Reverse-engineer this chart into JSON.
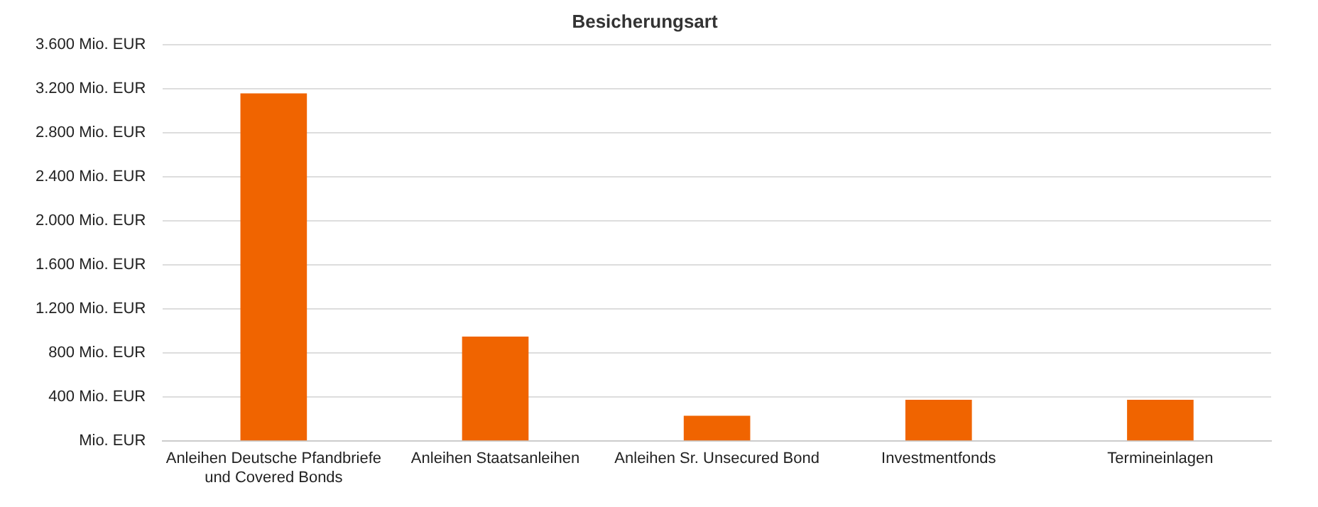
{
  "chart_data": {
    "type": "bar",
    "title": "Besicherungsart",
    "categories": [
      "Anleihen Deutsche Pfandbriefe und Covered Bonds",
      "Anleihen Staatsanleihen",
      "Anleihen Sr. Unsecured Bond",
      "Investmentfonds",
      "Termineinlagen"
    ],
    "values": [
      3160,
      950,
      230,
      375,
      375
    ],
    "color": "#f06400",
    "ylim": [
      0,
      3600
    ],
    "yticks": [
      {
        "value": 0,
        "label": "Mio. EUR"
      },
      {
        "value": 400,
        "label": "400 Mio. EUR"
      },
      {
        "value": 800,
        "label": "800 Mio. EUR"
      },
      {
        "value": 1200,
        "label": "1.200 Mio. EUR"
      },
      {
        "value": 1600,
        "label": "1.600 Mio. EUR"
      },
      {
        "value": 2000,
        "label": "2.000 Mio. EUR"
      },
      {
        "value": 2400,
        "label": "2.400 Mio. EUR"
      },
      {
        "value": 2800,
        "label": "2.800 Mio. EUR"
      },
      {
        "value": 3200,
        "label": "3.200 Mio. EUR"
      },
      {
        "value": 3600,
        "label": "3.600 Mio. EUR"
      }
    ],
    "grid": "y",
    "legend": false
  }
}
